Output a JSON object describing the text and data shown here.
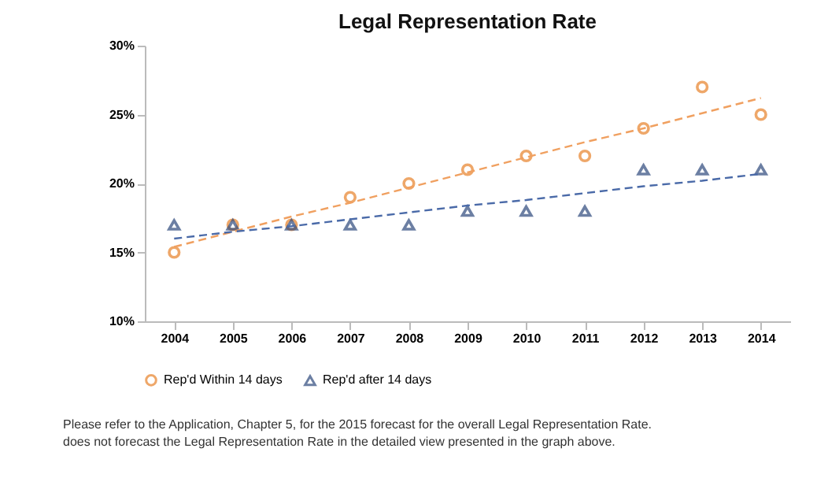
{
  "chart_data": {
    "type": "scatter",
    "title": "Legal Representation Rate",
    "categories": [
      "2004",
      "2005",
      "2006",
      "2007",
      "2008",
      "2009",
      "2010",
      "2011",
      "2012",
      "2013",
      "2014"
    ],
    "series": [
      {
        "name": "Rep'd Within 14 days",
        "color": "#e8822a",
        "marker": "circle",
        "values": [
          15,
          17,
          17,
          19,
          20,
          21,
          22,
          22,
          24,
          27,
          25
        ]
      },
      {
        "name": "Rep'd after 14 days",
        "color": "#2e4a7d",
        "marker": "triangle",
        "values": [
          17,
          17,
          17,
          17,
          17,
          18,
          18,
          18,
          21,
          21,
          21
        ]
      },
      {
        "type": "line",
        "color": "#f0a060",
        "line_style": "dashed",
        "values": [
          15.4,
          16.5,
          17.6,
          18.6,
          19.7,
          20.8,
          21.9,
          23.0,
          24.0,
          25.1,
          26.2
        ]
      },
      {
        "type": "line",
        "color": "#4a6aa8",
        "line_style": "dashed",
        "values": [
          16.0,
          16.5,
          16.9,
          17.4,
          17.9,
          18.4,
          18.8,
          19.3,
          19.8,
          20.2,
          20.7
        ]
      }
    ],
    "ylim": [
      10,
      30
    ],
    "yticks": [
      {
        "value": 10,
        "label": "10%"
      },
      {
        "value": 15,
        "label": "15%"
      },
      {
        "value": 20,
        "label": "20%"
      },
      {
        "value": 25,
        "label": "25%"
      },
      {
        "value": 30,
        "label": "30%"
      }
    ],
    "grid": false,
    "legend": "bottom",
    "annotations": [
      "Please refer to the Application, Chapter 5, for the 2015 forecast for the overall Legal Representation Rate.",
      "does not forecast the Legal Representation Rate in the detailed view presented in the graph above."
    ]
  }
}
